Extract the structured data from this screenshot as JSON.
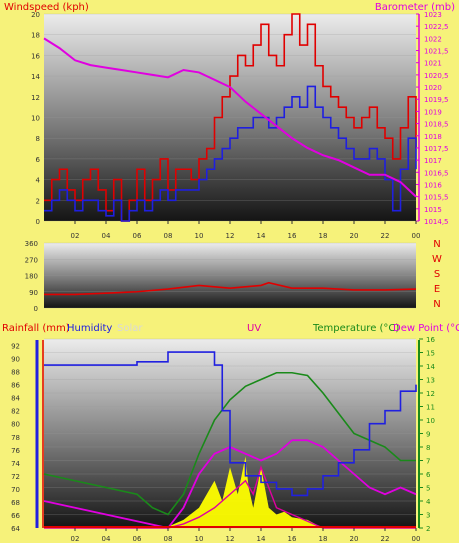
{
  "colors": {
    "background": "#f6f27a",
    "windspeed": "#e00000",
    "wind_avg": "#1f1fe0",
    "barometer": "#e000e0",
    "direction": "#e00000",
    "humidity": "#2020e0",
    "solar": "#ffff00",
    "uv": "#e000a0",
    "temperature": "#1a8a1a",
    "dewpoint": "#e000e0",
    "rain": "#e00000",
    "green_marker": "#00a000"
  },
  "panel1": {
    "left_title": "Windspeed (kph)",
    "center_title": "",
    "right_title": "Barometer (mb)"
  },
  "panel3": {
    "rain_label": "Rainfall (mm)",
    "humidity_label": "Humidity",
    "solar_label": "Solar",
    "uv_label": "UV",
    "temperature_label": "Temperature (°C)",
    "dewpoint_label": "Dew Point (°C"
  },
  "compass": [
    "N",
    "W",
    "S",
    "E",
    "N"
  ],
  "chart_data": [
    {
      "type": "line",
      "title": "",
      "ylabel_left": "Windspeed (kph)",
      "ylabel_right": "Barometer (mb)",
      "x_tick_labels": [
        "02",
        "04",
        "06",
        "08",
        "10",
        "12",
        "14",
        "16",
        "18",
        "20",
        "22",
        "00"
      ],
      "y_left_ticks": [
        "0",
        "2",
        "4",
        "6",
        "8",
        "10",
        "12",
        "14",
        "16",
        "18",
        "20"
      ],
      "y_left_range": [
        0,
        20
      ],
      "y_right_ticks": [
        "1014,5",
        "1015",
        "1015,5",
        "1016",
        "1016,5",
        "1017",
        "1017,5",
        "1018",
        "1018,5",
        "1019",
        "1019,5",
        "1020",
        "1020,5",
        "1021",
        "1021,5",
        "1022",
        "1022,5",
        "1023"
      ],
      "y_right_range": [
        1014.5,
        1023
      ],
      "series": [
        {
          "name": "Windspeed (kph)",
          "axis": "left",
          "x": [
            0,
            0.5,
            1,
            1.5,
            2,
            2.5,
            3,
            3.5,
            4,
            4.5,
            5,
            5.5,
            6,
            6.5,
            7,
            7.5,
            8,
            8.5,
            9,
            9.5,
            10,
            10.5,
            11,
            11.5,
            12,
            12.5,
            13,
            13.5,
            14,
            14.5,
            15,
            15.5,
            16,
            16.5,
            17,
            17.5,
            18,
            18.5,
            19,
            19.5,
            20,
            20.5,
            21,
            21.5,
            22,
            22.5,
            23,
            23.5,
            24
          ],
          "y": [
            2,
            4,
            5,
            3,
            2,
            4,
            5,
            3,
            1,
            4,
            0,
            2,
            5,
            2,
            4,
            6,
            3,
            5,
            5,
            4,
            6,
            7,
            10,
            12,
            14,
            16,
            15,
            17,
            19,
            16,
            15,
            18,
            20,
            17,
            19,
            15,
            13,
            12,
            11,
            10,
            9,
            10,
            11,
            9,
            8,
            6,
            9,
            12,
            7
          ]
        },
        {
          "name": "",
          "axis": "left",
          "x": [
            0,
            0.5,
            1,
            1.5,
            2,
            2.5,
            3,
            3.5,
            4,
            4.5,
            5,
            5.5,
            6,
            6.5,
            7,
            7.5,
            8,
            8.5,
            9,
            9.5,
            10,
            10.5,
            11,
            11.5,
            12,
            12.5,
            13,
            13.5,
            14,
            14.5,
            15,
            15.5,
            16,
            16.5,
            17,
            17.5,
            18,
            18.5,
            19,
            19.5,
            20,
            20.5,
            21,
            21.5,
            22,
            22.5,
            23,
            23.5,
            24
          ],
          "y": [
            1,
            2,
            3,
            2,
            1,
            2,
            2,
            1,
            0.5,
            2,
            0,
            1,
            2,
            1,
            2,
            3,
            2,
            3,
            3,
            3,
            4,
            5,
            6,
            7,
            8,
            9,
            9,
            10,
            10,
            9,
            10,
            11,
            12,
            11,
            13,
            11,
            10,
            9,
            8,
            7,
            6,
            6,
            7,
            6,
            4,
            1,
            5,
            8,
            5
          ]
        },
        {
          "name": "Barometer (mb)",
          "axis": "right",
          "x": [
            0,
            1,
            2,
            3,
            4,
            5,
            6,
            7,
            8,
            9,
            10,
            11,
            12,
            13,
            14,
            15,
            16,
            17,
            18,
            19,
            20,
            21,
            22,
            23,
            24
          ],
          "y": [
            1022,
            1021.6,
            1021.1,
            1020.9,
            1020.8,
            1020.7,
            1020.6,
            1020.5,
            1020.4,
            1020.7,
            1020.6,
            1020.3,
            1020.0,
            1019.4,
            1018.9,
            1018.4,
            1017.9,
            1017.5,
            1017.2,
            1017.0,
            1016.7,
            1016.4,
            1016.4,
            1016.1,
            1015.5
          ]
        }
      ]
    },
    {
      "type": "line",
      "title": "",
      "ylabel_left": "",
      "y_ticks": [
        "0",
        "90",
        "180",
        "270",
        "360"
      ],
      "y_range": [
        0,
        360
      ],
      "series": [
        {
          "name": "",
          "x": [
            0,
            2,
            4,
            6,
            8,
            10,
            12,
            14,
            14.5,
            16,
            18,
            20,
            22,
            24
          ],
          "y": [
            75,
            75,
            82,
            90,
            105,
            125,
            110,
            125,
            140,
            110,
            110,
            100,
            100,
            105
          ]
        }
      ]
    },
    {
      "type": "line",
      "title": "",
      "x_tick_labels": [
        "02",
        "04",
        "06",
        "08",
        "10",
        "12",
        "14",
        "16",
        "18",
        "20",
        "22",
        "00"
      ],
      "y_left_ticks": [
        "64",
        "66",
        "68",
        "70",
        "72",
        "74",
        "76",
        "78",
        "80",
        "82",
        "84",
        "86",
        "88",
        "90",
        "92"
      ],
      "y_left_range": [
        64,
        93
      ],
      "y_right_ticks": [
        "2",
        "3",
        "4",
        "5",
        "6",
        "7",
        "8",
        "9",
        "10",
        "11",
        "12",
        "13",
        "14",
        "15",
        "16"
      ],
      "y_right_range": [
        2,
        16
      ],
      "series": [
        {
          "name": "Humidity",
          "axis": "left",
          "x": [
            0,
            2,
            4,
            6,
            8,
            9,
            10,
            11,
            11.5,
            12,
            13,
            14,
            15,
            16,
            17,
            18,
            19,
            20,
            21,
            22,
            23,
            24
          ],
          "y": [
            89,
            89,
            89,
            89.5,
            91,
            91,
            91,
            89,
            82,
            74,
            72,
            71,
            70,
            69,
            70,
            72,
            74,
            76,
            80,
            82,
            85,
            86
          ]
        },
        {
          "name": "Temperature (°C)",
          "axis": "right",
          "x": [
            0,
            2,
            4,
            6,
            7,
            8,
            9,
            10,
            11,
            12,
            13,
            14,
            15,
            16,
            17,
            18,
            19,
            20,
            21,
            22,
            23,
            24
          ],
          "y": [
            6,
            5.5,
            5,
            4.5,
            3.5,
            3,
            4.5,
            7.5,
            10,
            11.5,
            12.5,
            13,
            13.5,
            13.5,
            13.3,
            12,
            10.5,
            9,
            8.5,
            8,
            7,
            7
          ]
        },
        {
          "name": "Dew Point (°C",
          "axis": "right",
          "x": [
            0,
            2,
            4,
            6,
            8,
            9,
            10,
            11,
            12,
            13,
            14,
            15,
            16,
            17,
            18,
            19,
            20,
            21,
            22,
            23,
            24
          ],
          "y": [
            4,
            3.5,
            3,
            2.5,
            2,
            3.5,
            6,
            7.5,
            8,
            7.5,
            7,
            7.5,
            8.5,
            8.5,
            8,
            7,
            6,
            5,
            4.5,
            5,
            4.5
          ]
        },
        {
          "name": "UV",
          "axis": "right",
          "x": [
            0,
            8,
            9,
            10,
            11,
            12,
            13,
            13.5,
            14,
            15,
            16,
            17,
            18,
            24
          ],
          "y": [
            2,
            2,
            2.3,
            2.8,
            3.5,
            4.5,
            5.5,
            4.5,
            6.5,
            3.5,
            3,
            2.5,
            2,
            2
          ]
        },
        {
          "name": "Solar",
          "axis": "right",
          "x": [
            0,
            7.5,
            8,
            9,
            10,
            10.5,
            11,
            11.5,
            12,
            12.5,
            13,
            13.2,
            13.5,
            14,
            14.5,
            15,
            15.5,
            16,
            17,
            18,
            24
          ],
          "y": [
            2,
            2,
            2.1,
            2.6,
            3.5,
            4.5,
            5.5,
            4,
            6.5,
            4.5,
            7.3,
            5,
            3.5,
            6.5,
            3.5,
            3,
            3.2,
            2.8,
            2.6,
            2,
            2
          ]
        }
      ]
    }
  ]
}
